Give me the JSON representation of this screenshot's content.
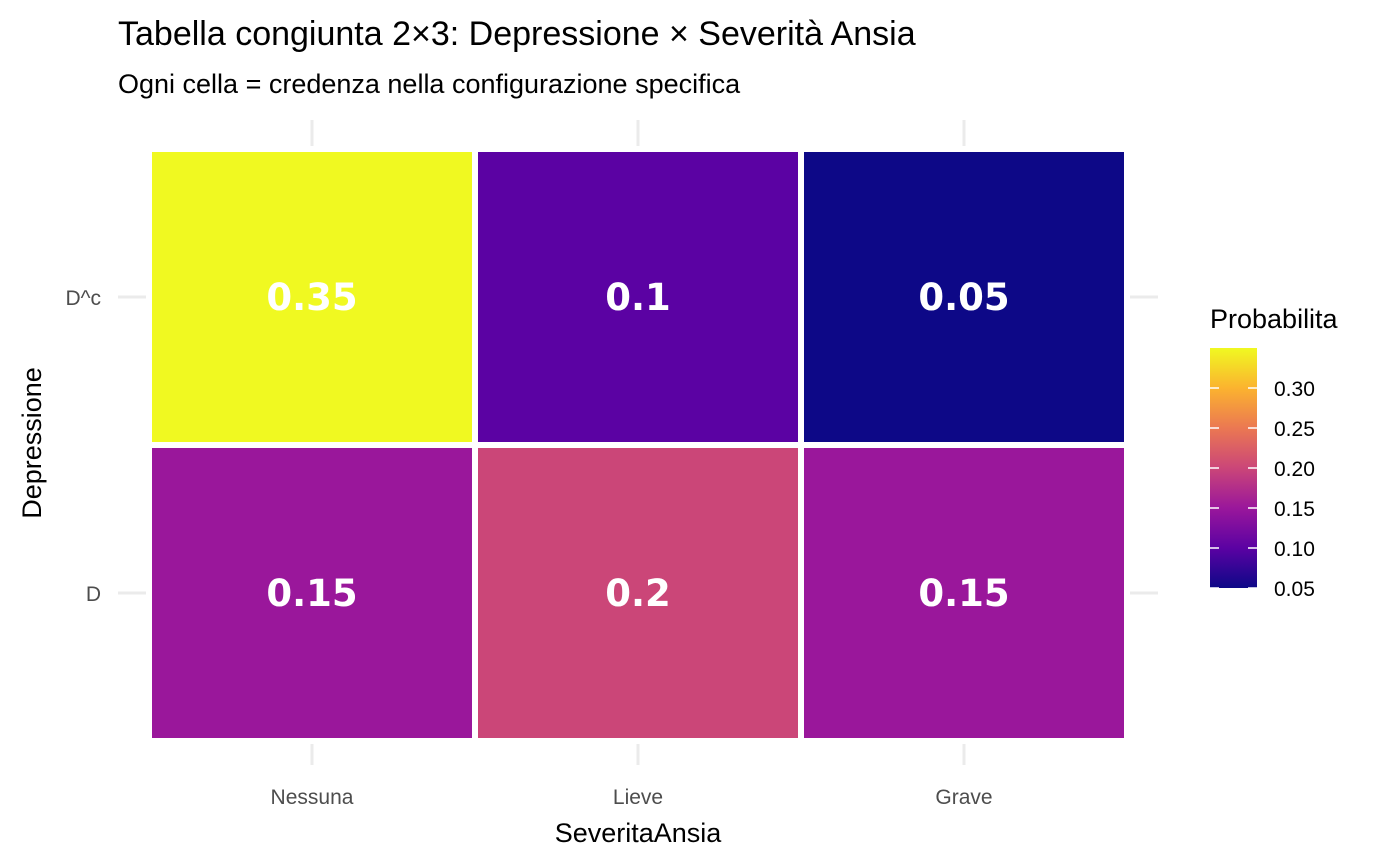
{
  "chart_data": {
    "type": "heatmap",
    "title": "Tabella congiunta 2×3: Depressione × Severità Ansia",
    "subtitle": "Ogni cella = credenza nella configurazione specifica",
    "xlabel": "SeveritaAnsia",
    "ylabel": "Depressione",
    "x_categories": [
      "Nessuna",
      "Lieve",
      "Grave"
    ],
    "y_categories": [
      "D",
      "D^c"
    ],
    "cells": [
      {
        "x": "Nessuna",
        "y": "D^c",
        "value": 0.35,
        "label": "0.35"
      },
      {
        "x": "Lieve",
        "y": "D^c",
        "value": 0.1,
        "label": "0.1"
      },
      {
        "x": "Grave",
        "y": "D^c",
        "value": 0.05,
        "label": "0.05"
      },
      {
        "x": "Nessuna",
        "y": "D",
        "value": 0.15,
        "label": "0.15"
      },
      {
        "x": "Lieve",
        "y": "D",
        "value": 0.2,
        "label": "0.2"
      },
      {
        "x": "Grave",
        "y": "D",
        "value": 0.15,
        "label": "0.15"
      }
    ],
    "legend": {
      "title": "Probabilita",
      "position": "right",
      "range": [
        0.05,
        0.35
      ],
      "ticks": [
        "0.05",
        "0.10",
        "0.15",
        "0.20",
        "0.25",
        "0.30"
      ],
      "tick_values": [
        0.05,
        0.1,
        0.15,
        0.2,
        0.25,
        0.3
      ]
    },
    "color_scale": {
      "name": "plasma",
      "stops": [
        {
          "value": 0.05,
          "color": "#0d0887"
        },
        {
          "value": 0.1,
          "color": "#5b02a3"
        },
        {
          "value": 0.15,
          "color": "#9a179b"
        },
        {
          "value": 0.2,
          "color": "#cb4678"
        },
        {
          "value": 0.25,
          "color": "#eb7852"
        },
        {
          "value": 0.3,
          "color": "#fbb32f"
        },
        {
          "value": 0.35,
          "color": "#f0f921"
        }
      ]
    },
    "grid": true
  }
}
